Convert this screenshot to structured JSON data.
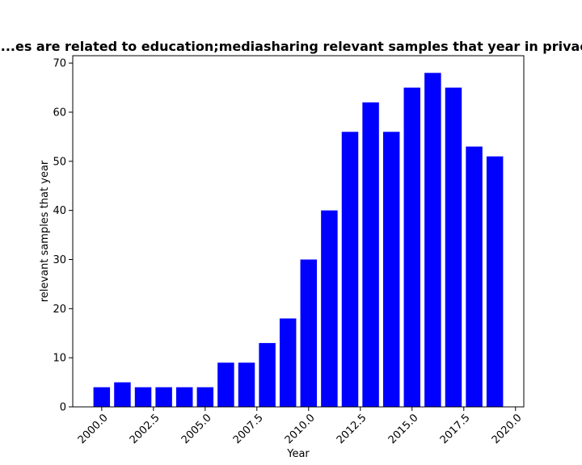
{
  "chart_data": {
    "type": "bar",
    "title": "...es are related to education;mediasharing relevant samples that year in privacy",
    "xlabel": "Year",
    "ylabel": "relevant samples that year",
    "x": [
      2000,
      2001,
      2002,
      2003,
      2004,
      2005,
      2006,
      2007,
      2008,
      2009,
      2010,
      2011,
      2012,
      2013,
      2014,
      2015,
      2016,
      2017,
      2018,
      2019
    ],
    "values": [
      4,
      5,
      4,
      4,
      4,
      4,
      9,
      9,
      13,
      18,
      30,
      40,
      56,
      62,
      56,
      65,
      68,
      65,
      53,
      51
    ],
    "xlim": [
      1998.6,
      2020.4
    ],
    "ylim": [
      0,
      71.5
    ],
    "xticks": [
      "2000.0",
      "2002.5",
      "2005.0",
      "2007.5",
      "2010.0",
      "2012.5",
      "2015.0",
      "2017.5",
      "2020.0"
    ],
    "xtick_values": [
      2000,
      2002.5,
      2005,
      2007.5,
      2010,
      2012.5,
      2015,
      2017.5,
      2020
    ],
    "yticks": [
      "0",
      "10",
      "20",
      "30",
      "40",
      "50",
      "60",
      "70"
    ],
    "ytick_values": [
      0,
      10,
      20,
      30,
      40,
      50,
      60,
      70
    ],
    "bar_color": "#0000ff",
    "grid": false,
    "legend": false
  }
}
